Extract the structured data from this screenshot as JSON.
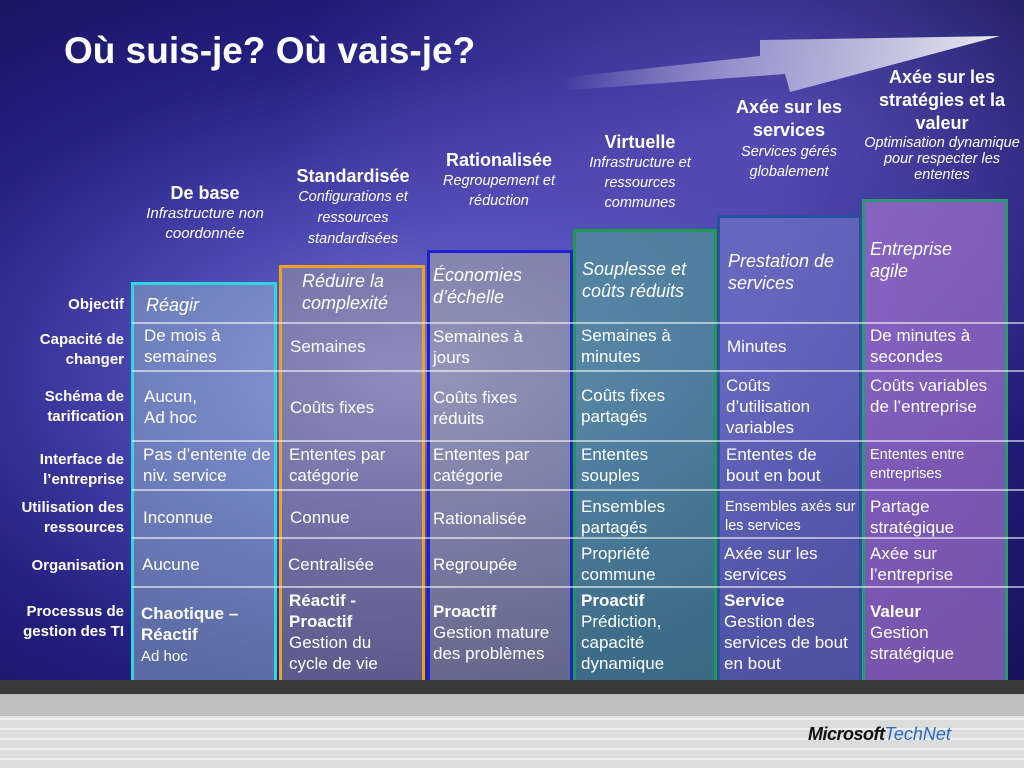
{
  "title": "Où suis-je? Où vais-je?",
  "stages": [
    {
      "name": "De base",
      "desc": "Infrastructure non coordonnée",
      "color": "#2fd6e0"
    },
    {
      "name": "Standardisée",
      "desc": "Configurations et ressources standardisées",
      "color": "#f0a020"
    },
    {
      "name": "Rationalisée",
      "desc": "Regroupement et réduction",
      "color": "#2020d0"
    },
    {
      "name": "Virtuelle",
      "desc": "Infrastructure et ressources communes",
      "color": "#1e9a50"
    },
    {
      "name": "Axée sur les services",
      "desc": "Services gérés globalement",
      "color": "#2a50a0"
    },
    {
      "name": "Axée sur les stratégies et la valeur",
      "desc": "Optimisation dynamique pour respecter les ententes",
      "color": "#2a9a70"
    }
  ],
  "row_labels": {
    "objectif": "Objectif",
    "capacite": "Capacité de changer",
    "tarification": "Schéma de tarification",
    "interface": "Interface de l’entreprise",
    "utilisation": "Utilisation des ressources",
    "organisation": "Organisation",
    "processus": "Processus de gestion des TI"
  },
  "cells": {
    "objectif": [
      "Réagir",
      "Réduire la complexité",
      "Économies d’échelle",
      "Souplesse et coûts réduits",
      "Prestation de services",
      "Entreprise agile"
    ],
    "capacite": [
      "De mois à semaines",
      "Semaines",
      "Semaines à jours",
      "Semaines à minutes",
      "Minutes",
      "De minutes à secondes"
    ],
    "tarification": [
      "Aucun, Ad hoc",
      "Coûts fixes",
      "Coûts fixes réduits",
      "Coûts fixes partagés",
      "Coûts d’utilisation variables",
      "Coûts variables de l’entreprise"
    ],
    "interface": [
      "Pas d’entente de niv. service",
      "Ententes par catégorie",
      "Ententes par catégorie",
      "Ententes souples",
      "Ententes de bout en bout",
      "Ententes entre entreprises"
    ],
    "utilisation": [
      "Inconnue",
      "Connue",
      "Rationalisée",
      "Ensembles partagés",
      "Ensembles axés sur les services",
      "Partage stratégique"
    ],
    "organisation": [
      "Aucune",
      "Centralisée",
      "Regroupée",
      "Propriété commune",
      "Axée sur les services",
      "Axée sur l’entreprise"
    ],
    "processus_bold": [
      "Chaotique – Réactif",
      "Réactif - Proactif",
      "Proactif",
      "Proactif",
      "Service",
      "Valeur"
    ],
    "processus_detail": [
      "Ad hoc",
      "Gestion du cycle de vie",
      "Gestion mature des problèmes",
      "Prédiction, capacité dynamique",
      "Gestion des services de bout en bout",
      "Gestion stratégique"
    ]
  },
  "footer": {
    "brand": "Microsoft",
    "product": "TechNet"
  }
}
